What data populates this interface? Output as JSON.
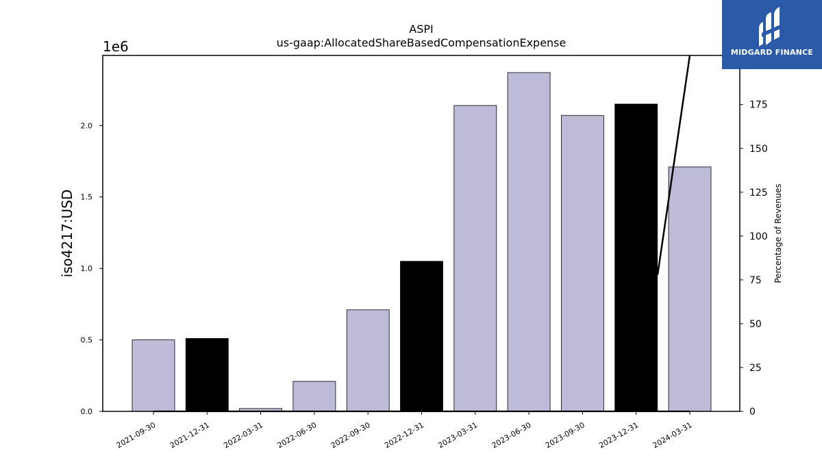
{
  "logo": {
    "text": "MIDGARD FINANCE",
    "color": "#2b5aa8"
  },
  "chart_data": {
    "type": "bar",
    "title": "ASPI",
    "subtitle": "us-gaap:AllocatedShareBasedCompensationExpense",
    "ylabel": "iso4217:USD",
    "ylabel_right": "Percentage of Revenues",
    "y_scale_label": "1e6",
    "categories": [
      "2021-09-30",
      "2021-12-31",
      "2022-03-31",
      "2022-06-30",
      "2022-09-30",
      "2022-12-31",
      "2023-03-31",
      "2023-06-30",
      "2023-09-30",
      "2023-12-31",
      "2024-03-31"
    ],
    "values": [
      0.5,
      0.51,
      0.02,
      0.21,
      0.71,
      1.05,
      2.14,
      2.37,
      2.07,
      2.15,
      1.71
    ],
    "bar_colors": [
      "#bebbd9",
      "#000000",
      "#bebbd9",
      "#bebbd9",
      "#bebbd9",
      "#000000",
      "#bebbd9",
      "#bebbd9",
      "#bebbd9",
      "#000000",
      "#bebbd9"
    ],
    "ylim": [
      0,
      2.49
    ],
    "yticks": [
      "0.0",
      "0.5",
      "1.0",
      "1.5",
      "2.0"
    ],
    "ytick_values": [
      0,
      0.5,
      1.0,
      1.5,
      2.0
    ],
    "y2lim": [
      0,
      203
    ],
    "y2ticks": [
      "0",
      "25",
      "50",
      "75",
      "100",
      "125",
      "150",
      "175"
    ],
    "y2tick_values": [
      0,
      25,
      50,
      75,
      100,
      125,
      150,
      175
    ],
    "line_series": {
      "values": [
        0,
        0,
        0,
        0,
        0,
        0,
        0,
        0,
        0,
        0,
        0
      ],
      "extra_segment": {
        "from_index": 9.4,
        "from_value": 78,
        "to_index": 10,
        "to_value": 203
      }
    },
    "grid": false
  }
}
